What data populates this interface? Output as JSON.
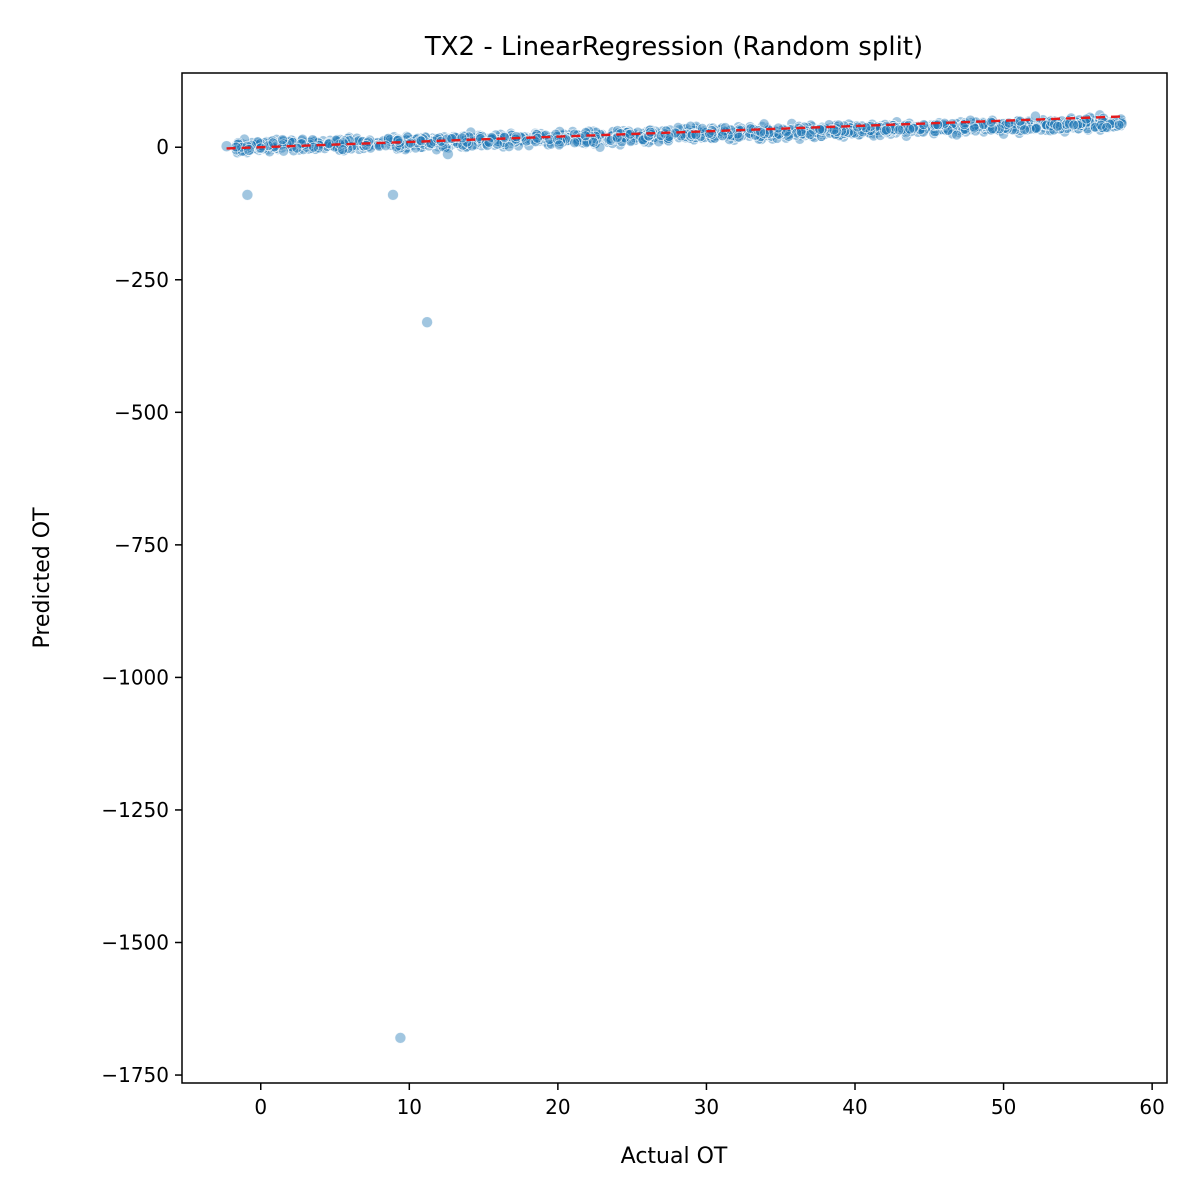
{
  "chart_data": {
    "type": "scatter",
    "title": "TX2 - LinearRegression (Random split)",
    "xlabel": "Actual OT",
    "ylabel": "Predicted OT",
    "xlim": [
      -5.3,
      61.0
    ],
    "ylim": [
      -1765,
      140
    ],
    "xticks": [
      0,
      10,
      20,
      30,
      40,
      50,
      60
    ],
    "yticks": [
      0,
      -250,
      -500,
      -750,
      -1000,
      -1250,
      -1500,
      -1750
    ],
    "ytick_labels": [
      "0",
      "−250",
      "−500",
      "−750",
      "−1000",
      "−1250",
      "−1500",
      "−1750"
    ],
    "grid": false,
    "legend": "none",
    "point_color": "#1f77b4",
    "reference_line": {
      "style": "dashed",
      "color": "#e41a1c",
      "x": [
        -2.3,
        58.0
      ],
      "y": [
        -2.3,
        58.0
      ]
    },
    "outliers": [
      {
        "x": -0.9,
        "y": -90
      },
      {
        "x": -0.8,
        "y": -5
      },
      {
        "x": 8.9,
        "y": -90
      },
      {
        "x": 11.2,
        "y": -330
      },
      {
        "x": 9.4,
        "y": -1680
      },
      {
        "x": 12.6,
        "y": -13
      },
      {
        "x": -2.3,
        "y": 2
      }
    ],
    "bulk_trend": {
      "description": "dense band of predictions tracking actual values",
      "x_range": [
        -2.3,
        58.0
      ],
      "y_at_x": [
        [
          -2,
          1
        ],
        [
          10,
          9
        ],
        [
          20,
          16
        ],
        [
          30,
          25
        ],
        [
          40,
          33
        ],
        [
          50,
          40
        ],
        [
          58,
          45
        ]
      ],
      "spread": 6
    }
  }
}
